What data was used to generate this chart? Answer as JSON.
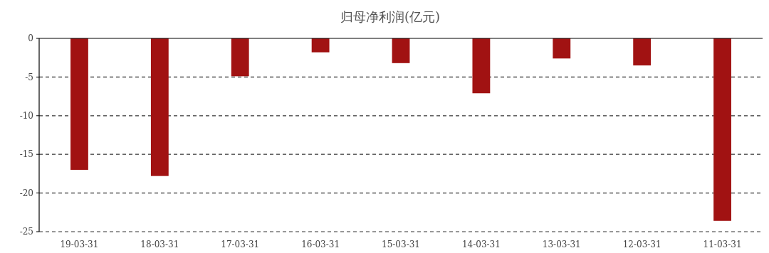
{
  "chart_data": {
    "type": "bar",
    "title": "归母净利润(亿元)",
    "categories": [
      "19-03-31",
      "18-03-31",
      "17-03-31",
      "16-03-31",
      "15-03-31",
      "14-03-31",
      "13-03-31",
      "12-03-31",
      "11-03-31"
    ],
    "values": [
      -17.0,
      -17.8,
      -4.9,
      -1.8,
      -3.2,
      -7.1,
      -2.6,
      -3.5,
      -23.6
    ],
    "color": "#a11212",
    "ylim": [
      -25,
      0
    ],
    "yticks": [
      -25,
      -20,
      -15,
      -10,
      -5,
      0
    ],
    "grid": "y"
  }
}
